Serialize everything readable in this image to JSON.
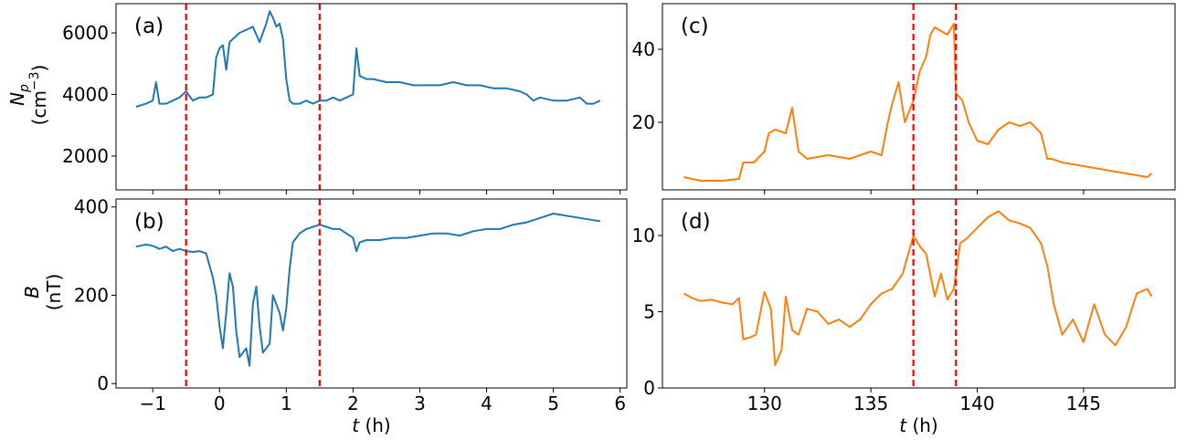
{
  "chart_data": [
    {
      "panel_label": "(a)",
      "type": "line",
      "ylabel_main": "N",
      "ylabel_sub": "p",
      "ylabel_unit_prefix": "(cm",
      "ylabel_unit_exp": "−3",
      "ylabel_unit_suffix": ")",
      "xlabel": "",
      "xlim": [
        -1.55,
        6.1
      ],
      "ylim": [
        900,
        6950
      ],
      "xticks": [
        -1,
        0,
        1,
        2,
        3,
        4,
        5,
        6
      ],
      "xtick_labels_shown": false,
      "yticks": [
        2000,
        4000,
        6000
      ],
      "ytick_labels": [
        "2000",
        "4000",
        "6000"
      ],
      "vlines": [
        -0.5,
        1.5
      ],
      "series": [
        {
          "color": "#1f77b4",
          "x": [
            -1.25,
            -1.1,
            -1.0,
            -0.95,
            -0.9,
            -0.8,
            -0.7,
            -0.6,
            -0.5,
            -0.4,
            -0.3,
            -0.2,
            -0.1,
            -0.05,
            0.0,
            0.05,
            0.1,
            0.15,
            0.2,
            0.3,
            0.4,
            0.5,
            0.6,
            0.7,
            0.75,
            0.8,
            0.85,
            0.9,
            0.95,
            1.0,
            1.05,
            1.1,
            1.2,
            1.3,
            1.4,
            1.5,
            1.6,
            1.7,
            1.8,
            1.9,
            2.0,
            2.05,
            2.1,
            2.2,
            2.3,
            2.5,
            2.7,
            2.9,
            3.1,
            3.3,
            3.5,
            3.7,
            3.9,
            4.1,
            4.3,
            4.5,
            4.6,
            4.7,
            4.8,
            5.0,
            5.2,
            5.4,
            5.5,
            5.6,
            5.7
          ],
          "y": [
            3600,
            3700,
            3800,
            4400,
            3700,
            3700,
            3800,
            3900,
            4100,
            3800,
            3900,
            3900,
            4000,
            5200,
            5500,
            5600,
            4800,
            5700,
            5800,
            6000,
            6100,
            6200,
            5700,
            6300,
            6700,
            6500,
            6200,
            6300,
            5800,
            4500,
            3800,
            3700,
            3700,
            3800,
            3700,
            3800,
            3800,
            3900,
            3800,
            3900,
            4000,
            5500,
            4600,
            4500,
            4500,
            4400,
            4400,
            4300,
            4300,
            4300,
            4400,
            4300,
            4300,
            4200,
            4200,
            4100,
            4000,
            3800,
            3900,
            3800,
            3800,
            3900,
            3700,
            3700,
            3800
          ]
        }
      ]
    },
    {
      "panel_label": "(b)",
      "type": "line",
      "ylabel_main": "B",
      "ylabel_unit": "(nT)",
      "xlabel": "t (h)",
      "xlabel_var": "t",
      "xlabel_unit": " (h)",
      "xlim": [
        -1.55,
        6.1
      ],
      "ylim": [
        -10,
        418
      ],
      "xticks": [
        -1,
        0,
        1,
        2,
        3,
        4,
        5,
        6
      ],
      "xtick_labels": [
        "−1",
        "0",
        "1",
        "2",
        "3",
        "4",
        "5",
        "6"
      ],
      "yticks": [
        0,
        200,
        400
      ],
      "ytick_labels": [
        "0",
        "200",
        "400"
      ],
      "vlines": [
        -0.5,
        1.5
      ],
      "series": [
        {
          "color": "#1f77b4",
          "x": [
            -1.25,
            -1.1,
            -1.0,
            -0.9,
            -0.8,
            -0.7,
            -0.6,
            -0.5,
            -0.4,
            -0.3,
            -0.2,
            -0.1,
            -0.05,
            0.0,
            0.05,
            0.1,
            0.15,
            0.2,
            0.25,
            0.3,
            0.35,
            0.4,
            0.45,
            0.5,
            0.55,
            0.6,
            0.65,
            0.7,
            0.75,
            0.8,
            0.85,
            0.9,
            0.95,
            1.0,
            1.05,
            1.1,
            1.2,
            1.3,
            1.4,
            1.5,
            1.6,
            1.7,
            1.8,
            1.9,
            2.0,
            2.05,
            2.1,
            2.2,
            2.4,
            2.6,
            2.8,
            3.0,
            3.2,
            3.4,
            3.6,
            3.8,
            4.0,
            4.2,
            4.4,
            4.6,
            4.8,
            5.0,
            5.2,
            5.4,
            5.6,
            5.7
          ],
          "y": [
            310,
            315,
            312,
            305,
            310,
            300,
            305,
            300,
            298,
            300,
            295,
            240,
            200,
            130,
            80,
            160,
            250,
            220,
            120,
            60,
            70,
            80,
            40,
            180,
            220,
            130,
            70,
            80,
            90,
            200,
            180,
            160,
            120,
            170,
            260,
            320,
            340,
            350,
            355,
            360,
            355,
            350,
            350,
            340,
            330,
            300,
            320,
            325,
            325,
            330,
            330,
            335,
            340,
            340,
            335,
            345,
            350,
            350,
            360,
            365,
            375,
            385,
            380,
            375,
            370,
            368
          ]
        }
      ]
    },
    {
      "panel_label": "(c)",
      "type": "line",
      "xlabel": "",
      "xlim": [
        125.2,
        149.3
      ],
      "ylim": [
        1.5,
        52.5
      ],
      "xticks": [
        130,
        135,
        140,
        145
      ],
      "xtick_labels_shown": false,
      "yticks": [
        20,
        40
      ],
      "ytick_labels": [
        "20",
        "40"
      ],
      "vlines": [
        137.0,
        139.0
      ],
      "series": [
        {
          "color": "#ff7f0e",
          "x": [
            126.2,
            127.0,
            128.0,
            128.8,
            129.0,
            129.5,
            130.0,
            130.2,
            130.5,
            131.0,
            131.3,
            131.6,
            132.0,
            133.0,
            134.0,
            135.0,
            135.5,
            135.8,
            136.0,
            136.3,
            136.6,
            137.0,
            137.3,
            137.6,
            137.8,
            138.0,
            138.3,
            138.6,
            138.9,
            139.0,
            139.3,
            139.6,
            140.0,
            140.5,
            141.0,
            141.5,
            142.0,
            142.5,
            143.0,
            143.3,
            143.5,
            144.0,
            145.0,
            146.0,
            147.0,
            148.0,
            148.2
          ],
          "y": [
            5,
            4,
            4,
            4.5,
            9,
            9,
            12,
            17,
            18,
            17,
            24,
            12,
            10,
            11,
            10,
            12,
            11,
            20,
            25,
            31,
            20,
            26,
            34,
            38,
            44,
            46,
            45,
            44,
            47,
            28,
            26,
            20,
            15,
            14,
            18,
            20,
            19,
            20,
            17,
            10,
            10,
            9,
            8,
            7,
            6,
            5,
            6
          ]
        }
      ]
    },
    {
      "panel_label": "(d)",
      "type": "line",
      "xlabel": "t (h)",
      "xlabel_var": "t",
      "xlabel_unit": " (h)",
      "xlim": [
        125.2,
        149.3
      ],
      "ylim": [
        0,
        12.4
      ],
      "xticks": [
        130,
        135,
        140,
        145
      ],
      "xtick_labels": [
        "130",
        "135",
        "140",
        "145"
      ],
      "yticks": [
        0,
        5,
        10
      ],
      "ytick_labels": [
        "0",
        "5",
        "10"
      ],
      "vlines": [
        137.0,
        139.0
      ],
      "series": [
        {
          "color": "#ff7f0e",
          "x": [
            126.2,
            126.6,
            127.0,
            127.5,
            128.0,
            128.5,
            128.8,
            129.0,
            129.3,
            129.6,
            130.0,
            130.3,
            130.5,
            130.8,
            131.0,
            131.3,
            131.6,
            132.0,
            132.5,
            133.0,
            133.5,
            134.0,
            134.5,
            135.0,
            135.5,
            136.0,
            136.5,
            136.8,
            137.0,
            137.3,
            137.6,
            138.0,
            138.3,
            138.6,
            138.9,
            139.2,
            139.5,
            140.0,
            140.5,
            141.0,
            141.5,
            142.0,
            142.5,
            143.0,
            143.3,
            143.6,
            144.0,
            144.5,
            145.0,
            145.5,
            146.0,
            146.5,
            147.0,
            147.5,
            148.0,
            148.2
          ],
          "y": [
            6.2,
            5.9,
            5.7,
            5.8,
            5.6,
            5.5,
            5.9,
            3.2,
            3.3,
            3.5,
            6.3,
            5.2,
            1.5,
            2.5,
            6.0,
            3.8,
            3.5,
            5.2,
            5.0,
            4.2,
            4.5,
            4.0,
            4.5,
            5.5,
            6.2,
            6.5,
            7.5,
            9.0,
            10.0,
            9.3,
            8.8,
            6.0,
            7.5,
            5.8,
            6.5,
            9.5,
            9.8,
            10.5,
            11.2,
            11.6,
            11.0,
            10.8,
            10.5,
            9.5,
            8.0,
            5.5,
            3.5,
            4.5,
            3.0,
            5.5,
            3.5,
            2.8,
            4.0,
            6.2,
            6.5,
            6.0
          ]
        }
      ]
    }
  ]
}
